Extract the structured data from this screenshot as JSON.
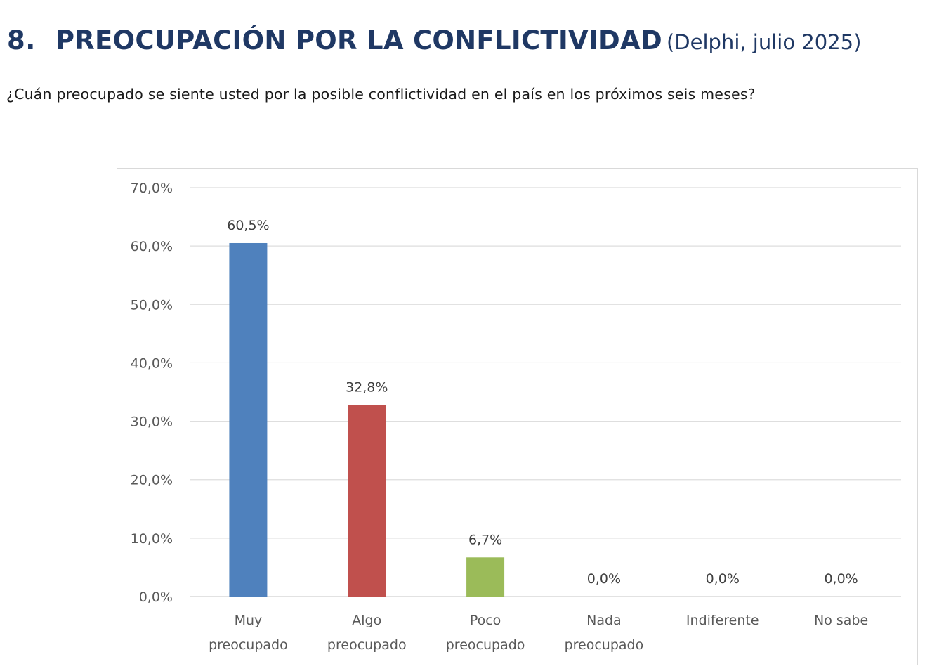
{
  "header": {
    "number": "8.",
    "title": "PREOCUPACIÓN POR LA CONFLICTIVIDAD",
    "subtitle": "(Delphi, julio 2025)",
    "question": "¿Cuán preocupado se siente usted por la posible conflictividad en el país en los próximos seis meses?"
  },
  "chart_data": {
    "type": "bar",
    "title": "",
    "xlabel": "",
    "ylabel": "",
    "ylim": [
      0,
      70
    ],
    "yticks": [
      0,
      10,
      20,
      30,
      40,
      50,
      60,
      70
    ],
    "ytick_labels": [
      "0,0%",
      "10,0%",
      "20,0%",
      "30,0%",
      "40,0%",
      "50,0%",
      "60,0%",
      "70,0%"
    ],
    "grid": true,
    "legend": "none",
    "categories": [
      [
        "Muy",
        "preocupado"
      ],
      [
        "Algo",
        "preocupado"
      ],
      [
        "Poco",
        "preocupado"
      ],
      [
        "Nada",
        "preocupado"
      ],
      [
        "Indiferente"
      ],
      [
        "No sabe"
      ]
    ],
    "values": [
      60.5,
      32.8,
      6.7,
      0.0,
      0.0,
      0.0
    ],
    "data_labels": [
      "60,5%",
      "32,8%",
      "6,7%",
      "0,0%",
      "0,0%",
      "0,0%"
    ],
    "colors": [
      "#4f81bd",
      "#c0504d",
      "#9bbb59",
      "#4f81bd",
      "#4f81bd",
      "#4f81bd"
    ]
  }
}
